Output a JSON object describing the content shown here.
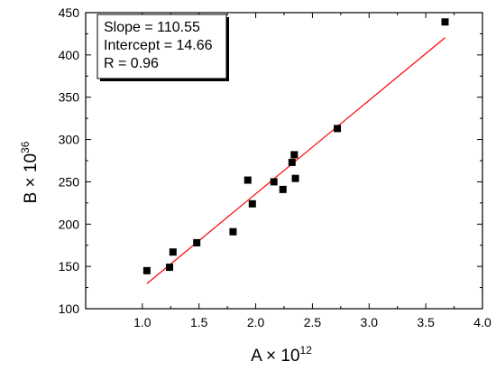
{
  "chart_data": {
    "type": "scatter",
    "xlabel": {
      "base": "A × 10",
      "exp": "12"
    },
    "ylabel": {
      "base": "B × 10",
      "exp": "36"
    },
    "xlim": [
      0.5,
      4.0
    ],
    "ylim": [
      100,
      450
    ],
    "xticks": [
      "1.0",
      "1.5",
      "2.0",
      "2.5",
      "3.0",
      "3.5",
      "4.0"
    ],
    "yticks": [
      "100",
      "150",
      "200",
      "250",
      "300",
      "350",
      "400",
      "450"
    ],
    "grid": false,
    "legend_position": "top-left",
    "stats_lines": [
      "Slope = 110.55",
      "Intercept = 14.66",
      "R = 0.96"
    ],
    "marker_color": "#000000",
    "fit_color": "#ff0000",
    "points": [
      {
        "x": 1.04,
        "y": 145
      },
      {
        "x": 1.24,
        "y": 149
      },
      {
        "x": 1.27,
        "y": 167
      },
      {
        "x": 1.48,
        "y": 178
      },
      {
        "x": 1.8,
        "y": 191
      },
      {
        "x": 1.93,
        "y": 252
      },
      {
        "x": 1.97,
        "y": 224
      },
      {
        "x": 2.16,
        "y": 250
      },
      {
        "x": 2.24,
        "y": 241
      },
      {
        "x": 2.32,
        "y": 273
      },
      {
        "x": 2.34,
        "y": 282
      },
      {
        "x": 2.35,
        "y": 254
      },
      {
        "x": 2.72,
        "y": 313
      },
      {
        "x": 3.67,
        "y": 439
      }
    ],
    "fit": {
      "x_start": 1.04,
      "x_end": 3.67,
      "slope": 110.55,
      "intercept": 14.66
    }
  }
}
